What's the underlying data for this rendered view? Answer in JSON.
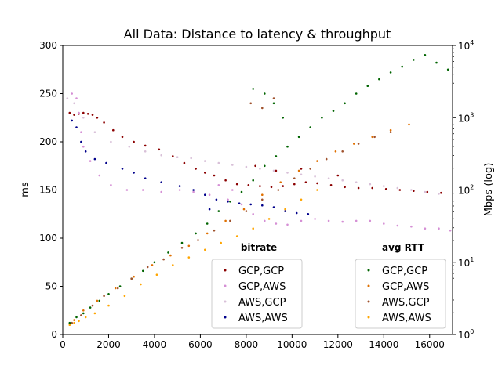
{
  "chart_data": {
    "type": "scatter",
    "title": "All Data: Distance to latency & throughput",
    "xlabel": "",
    "ylabel": "ms",
    "y2label": "Mbps (log)",
    "xlim": [
      0,
      17000
    ],
    "ylim": [
      0,
      300
    ],
    "y2lim": [
      1,
      10000
    ],
    "y2scale": "log",
    "xticks": [
      "0",
      "2000",
      "4000",
      "6000",
      "8000",
      "10000",
      "12000",
      "14000",
      "16000"
    ],
    "yticks": [
      "0",
      "50",
      "100",
      "150",
      "200",
      "250",
      "300"
    ],
    "y2ticks": [
      "10^0",
      "10^1",
      "10^2",
      "10^3",
      "10^4"
    ],
    "legends": [
      {
        "title": "bitrate",
        "placement": "lower-center-right",
        "entries": [
          {
            "name": "GCP,GCP",
            "color": "#8b0000"
          },
          {
            "name": "GCP,AWS",
            "color": "#d58fd5"
          },
          {
            "name": "AWS,GCP",
            "color": "#d8c0d8"
          },
          {
            "name": "AWS,AWS",
            "color": "#00008b"
          }
        ]
      },
      {
        "title": "avg RTT",
        "placement": "lower-right",
        "entries": [
          {
            "name": "GCP,GCP",
            "color": "#006400"
          },
          {
            "name": "GCP,AWS",
            "color": "#e07000"
          },
          {
            "name": "AWS,GCP",
            "color": "#a0522d"
          },
          {
            "name": "AWS,AWS",
            "color": "#ffa500"
          }
        ]
      }
    ],
    "series": [
      {
        "group": "bitrate",
        "name": "GCP,GCP",
        "color": "#8b0000",
        "axis": "right",
        "points": [
          [
            300,
            230
          ],
          [
            500,
            228
          ],
          [
            700,
            229
          ],
          [
            900,
            230
          ],
          [
            1100,
            229
          ],
          [
            1300,
            228
          ],
          [
            1500,
            225
          ],
          [
            1800,
            220
          ],
          [
            2200,
            212
          ],
          [
            2600,
            205
          ],
          [
            3100,
            200
          ],
          [
            3600,
            196
          ],
          [
            4200,
            192
          ],
          [
            4800,
            185
          ],
          [
            5300,
            178
          ],
          [
            5800,
            172
          ],
          [
            6200,
            168
          ],
          [
            6600,
            165
          ],
          [
            7100,
            160
          ],
          [
            7600,
            156
          ],
          [
            8100,
            155
          ],
          [
            8600,
            154
          ],
          [
            9100,
            153
          ],
          [
            9600,
            154
          ],
          [
            10100,
            156
          ],
          [
            10600,
            158
          ],
          [
            11100,
            157
          ],
          [
            11700,
            155
          ],
          [
            12300,
            153
          ],
          [
            12900,
            152
          ],
          [
            13500,
            152
          ],
          [
            14100,
            151
          ],
          [
            14700,
            150
          ],
          [
            15300,
            149
          ],
          [
            15900,
            148
          ],
          [
            16500,
            147
          ],
          [
            8400,
            175
          ],
          [
            9300,
            170
          ],
          [
            10400,
            172
          ],
          [
            12000,
            165
          ]
        ]
      },
      {
        "group": "bitrate",
        "name": "GCP,AWS",
        "color": "#d58fd5",
        "axis": "right",
        "points": [
          [
            400,
            250
          ],
          [
            600,
            245
          ],
          [
            700,
            230
          ],
          [
            800,
            210
          ],
          [
            900,
            195
          ],
          [
            1200,
            180
          ],
          [
            1600,
            165
          ],
          [
            2100,
            155
          ],
          [
            2800,
            150
          ],
          [
            3500,
            150
          ],
          [
            4300,
            148
          ],
          [
            5100,
            150
          ],
          [
            5700,
            148
          ],
          [
            6400,
            145
          ],
          [
            7200,
            140
          ],
          [
            7800,
            135
          ],
          [
            8300,
            125
          ],
          [
            8800,
            118
          ],
          [
            9300,
            115
          ],
          [
            9800,
            114
          ],
          [
            10400,
            118
          ],
          [
            11000,
            120
          ],
          [
            11600,
            118
          ],
          [
            12200,
            117
          ],
          [
            12800,
            118
          ],
          [
            13400,
            118
          ],
          [
            14000,
            115
          ],
          [
            14600,
            113
          ],
          [
            15200,
            112
          ],
          [
            15800,
            110
          ],
          [
            16400,
            110
          ],
          [
            16900,
            108
          ],
          [
            6800,
            155
          ],
          [
            7400,
            150
          ]
        ]
      },
      {
        "group": "bitrate",
        "name": "AWS,GCP",
        "color": "#d8c0d8",
        "axis": "right",
        "points": [
          [
            200,
            245
          ],
          [
            500,
            240
          ],
          [
            900,
            225
          ],
          [
            1400,
            210
          ],
          [
            2100,
            200
          ],
          [
            2900,
            195
          ],
          [
            3600,
            190
          ],
          [
            4300,
            186
          ],
          [
            5000,
            184
          ],
          [
            5600,
            183
          ],
          [
            6200,
            180
          ],
          [
            6800,
            178
          ],
          [
            7400,
            176
          ],
          [
            8000,
            174
          ],
          [
            8600,
            172
          ],
          [
            9200,
            170
          ],
          [
            9800,
            168
          ],
          [
            10400,
            166
          ],
          [
            11000,
            164
          ],
          [
            11600,
            162
          ],
          [
            12200,
            160
          ],
          [
            12800,
            158
          ],
          [
            13400,
            156
          ],
          [
            14000,
            154
          ],
          [
            14600,
            152
          ],
          [
            15200,
            150
          ],
          [
            15800,
            148
          ],
          [
            16400,
            146
          ]
        ]
      },
      {
        "group": "bitrate",
        "name": "AWS,AWS",
        "color": "#00008b",
        "axis": "right",
        "points": [
          [
            400,
            222
          ],
          [
            600,
            215
          ],
          [
            800,
            200
          ],
          [
            1000,
            190
          ],
          [
            1400,
            182
          ],
          [
            1900,
            178
          ],
          [
            2600,
            172
          ],
          [
            3100,
            168
          ],
          [
            3600,
            162
          ],
          [
            4300,
            158
          ],
          [
            5100,
            154
          ],
          [
            5700,
            150
          ],
          [
            6200,
            145
          ],
          [
            6700,
            140
          ],
          [
            7200,
            138
          ],
          [
            7700,
            136
          ],
          [
            8200,
            135
          ],
          [
            8700,
            134
          ],
          [
            9200,
            132
          ],
          [
            9700,
            128
          ],
          [
            10200,
            126
          ],
          [
            10700,
            125
          ],
          [
            6400,
            130
          ]
        ]
      },
      {
        "group": "avg RTT",
        "name": "GCP,GCP",
        "color": "#006400",
        "axis": "left",
        "points": [
          [
            300,
            12
          ],
          [
            600,
            18
          ],
          [
            900,
            22
          ],
          [
            1200,
            28
          ],
          [
            1600,
            35
          ],
          [
            2000,
            42
          ],
          [
            2500,
            50
          ],
          [
            3000,
            58
          ],
          [
            3500,
            66
          ],
          [
            4000,
            75
          ],
          [
            4600,
            85
          ],
          [
            5200,
            95
          ],
          [
            5800,
            105
          ],
          [
            6300,
            115
          ],
          [
            6800,
            128
          ],
          [
            7300,
            138
          ],
          [
            7800,
            148
          ],
          [
            8300,
            160
          ],
          [
            8800,
            175
          ],
          [
            9300,
            185
          ],
          [
            9800,
            195
          ],
          [
            10300,
            205
          ],
          [
            10800,
            215
          ],
          [
            11300,
            225
          ],
          [
            11800,
            232
          ],
          [
            12300,
            240
          ],
          [
            12800,
            250
          ],
          [
            13300,
            258
          ],
          [
            13800,
            265
          ],
          [
            14300,
            272
          ],
          [
            14800,
            278
          ],
          [
            15300,
            285
          ],
          [
            15800,
            290
          ],
          [
            16300,
            282
          ],
          [
            16800,
            275
          ],
          [
            8300,
            255
          ],
          [
            8800,
            250
          ],
          [
            9200,
            240
          ],
          [
            9600,
            225
          ]
        ]
      },
      {
        "group": "avg RTT",
        "name": "GCP,AWS",
        "color": "#e07000",
        "axis": "left",
        "points": [
          [
            500,
            15
          ],
          [
            900,
            25
          ],
          [
            1500,
            35
          ],
          [
            2300,
            48
          ],
          [
            3100,
            60
          ],
          [
            3900,
            72
          ],
          [
            4700,
            82
          ],
          [
            5500,
            92
          ],
          [
            6300,
            105
          ],
          [
            7100,
            118
          ],
          [
            7900,
            130
          ],
          [
            8700,
            145
          ],
          [
            9500,
            158
          ],
          [
            10300,
            170
          ],
          [
            11100,
            180
          ],
          [
            11900,
            190
          ],
          [
            12700,
            198
          ],
          [
            13500,
            205
          ],
          [
            14300,
            212
          ],
          [
            15100,
            218
          ]
        ]
      },
      {
        "group": "avg RTT",
        "name": "AWS,GCP",
        "color": "#a0522d",
        "axis": "left",
        "points": [
          [
            400,
            12
          ],
          [
            800,
            20
          ],
          [
            1300,
            30
          ],
          [
            1800,
            40
          ],
          [
            2400,
            48
          ],
          [
            3000,
            58
          ],
          [
            3700,
            70
          ],
          [
            4400,
            78
          ],
          [
            5200,
            90
          ],
          [
            5900,
            98
          ],
          [
            6600,
            108
          ],
          [
            7300,
            118
          ],
          [
            8000,
            128
          ],
          [
            8700,
            140
          ],
          [
            9400,
            150
          ],
          [
            10100,
            162
          ],
          [
            10800,
            172
          ],
          [
            11500,
            182
          ],
          [
            12200,
            190
          ],
          [
            12900,
            198
          ],
          [
            13600,
            205
          ],
          [
            14300,
            210
          ],
          [
            8200,
            240
          ],
          [
            8700,
            235
          ],
          [
            9200,
            245
          ]
        ]
      },
      {
        "group": "avg RTT",
        "name": "AWS,AWS",
        "color": "#ffa500",
        "axis": "left",
        "points": [
          [
            300,
            10
          ],
          [
            500,
            12
          ],
          [
            700,
            14
          ],
          [
            1000,
            18
          ],
          [
            1400,
            22
          ],
          [
            2000,
            30
          ],
          [
            2700,
            40
          ],
          [
            3400,
            52
          ],
          [
            4100,
            62
          ],
          [
            4800,
            72
          ],
          [
            5500,
            80
          ],
          [
            6200,
            88
          ],
          [
            6900,
            95
          ],
          [
            7600,
            102
          ],
          [
            8300,
            110
          ],
          [
            9000,
            120
          ],
          [
            9700,
            130
          ],
          [
            10400,
            140
          ],
          [
            11100,
            150
          ]
        ]
      }
    ]
  }
}
